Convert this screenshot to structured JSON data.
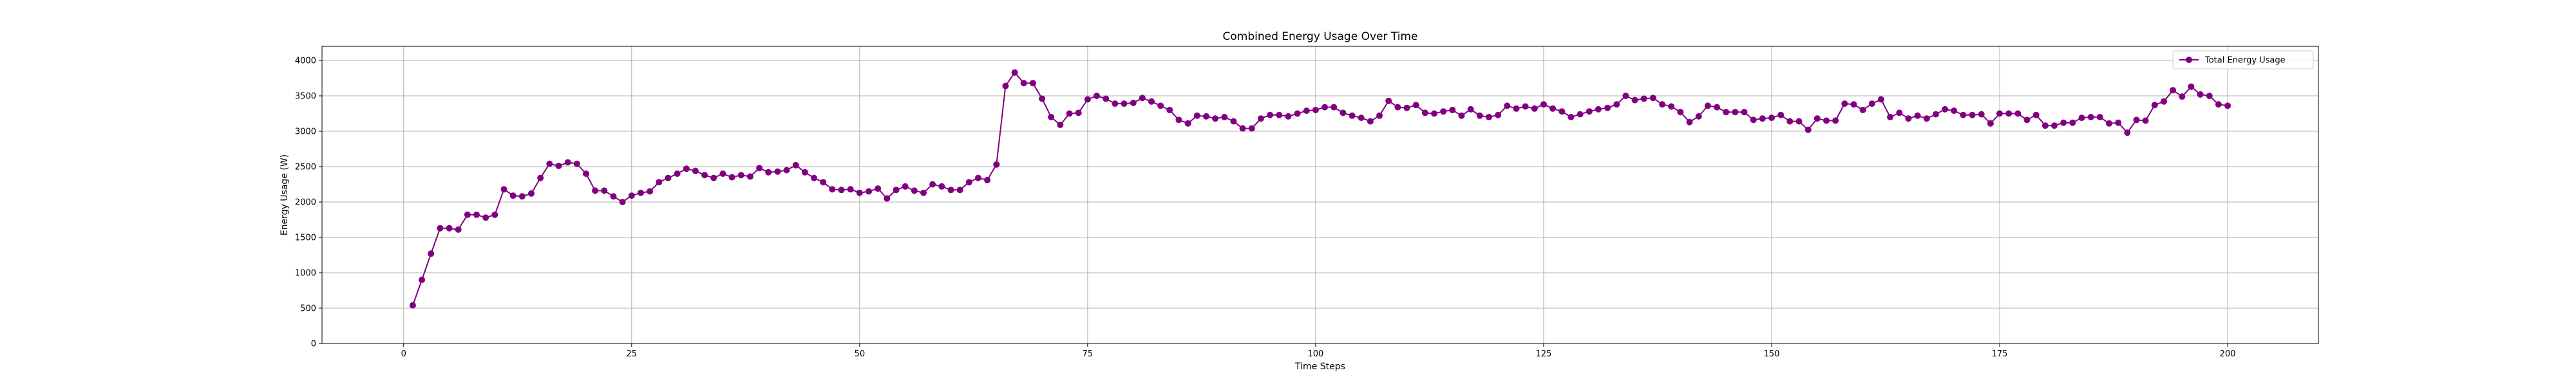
{
  "chart_data": {
    "type": "line",
    "title": "Combined Energy Usage Over Time",
    "xlabel": "Time Steps",
    "ylabel": "Energy Usage (W)",
    "xlim": [
      -8.95,
      209.95
    ],
    "ylim": [
      0,
      4200
    ],
    "xticks": [
      0,
      25,
      50,
      75,
      100,
      125,
      150,
      175,
      200
    ],
    "yticks": [
      0,
      500,
      1000,
      1500,
      2000,
      2500,
      3000,
      3500,
      4000
    ],
    "grid": true,
    "legend_position": "top-right",
    "series": [
      {
        "name": "Total Energy Usage",
        "color": "#800080",
        "marker": "circle",
        "x_start": 1,
        "x_step": 1,
        "values": [
          540,
          900,
          1270,
          1630,
          1630,
          1610,
          1820,
          1820,
          1780,
          1820,
          2180,
          2090,
          2080,
          2120,
          2340,
          2540,
          2510,
          2560,
          2540,
          2400,
          2160,
          2160,
          2080,
          2000,
          2090,
          2130,
          2150,
          2280,
          2340,
          2400,
          2470,
          2440,
          2380,
          2340,
          2400,
          2350,
          2380,
          2360,
          2480,
          2420,
          2430,
          2450,
          2520,
          2420,
          2340,
          2280,
          2180,
          2170,
          2180,
          2130,
          2150,
          2190,
          2050,
          2170,
          2220,
          2160,
          2130,
          2250,
          2220,
          2170,
          2170,
          2280,
          2340,
          2310,
          2530,
          3640,
          3830,
          3680,
          3680,
          3460,
          3200,
          3090,
          3250,
          3260,
          3450,
          3500,
          3460,
          3390,
          3390,
          3400,
          3470,
          3420,
          3360,
          3300,
          3160,
          3110,
          3220,
          3210,
          3180,
          3200,
          3140,
          3040,
          3040,
          3180,
          3230,
          3230,
          3210,
          3250,
          3290,
          3300,
          3340,
          3340,
          3260,
          3220,
          3190,
          3140,
          3220,
          3430,
          3340,
          3330,
          3370,
          3260,
          3250,
          3280,
          3300,
          3220,
          3310,
          3220,
          3200,
          3230,
          3360,
          3320,
          3350,
          3320,
          3380,
          3320,
          3280,
          3200,
          3240,
          3280,
          3310,
          3330,
          3380,
          3500,
          3440,
          3460,
          3470,
          3380,
          3350,
          3270,
          3130,
          3210,
          3360,
          3340,
          3270,
          3270,
          3270,
          3160,
          3180,
          3190,
          3230,
          3140,
          3140,
          3020,
          3180,
          3150,
          3150,
          3390,
          3380,
          3300,
          3390,
          3450,
          3200,
          3260,
          3180,
          3220,
          3180,
          3240,
          3310,
          3290,
          3230,
          3230,
          3240,
          3110,
          3250,
          3250,
          3250,
          3160,
          3230,
          3080,
          3080,
          3120,
          3120,
          3190,
          3200,
          3200,
          3110,
          3120,
          2980,
          3160,
          3150,
          3370,
          3420,
          3580,
          3490,
          3630,
          3520,
          3500,
          3380,
          3360
        ]
      }
    ]
  }
}
